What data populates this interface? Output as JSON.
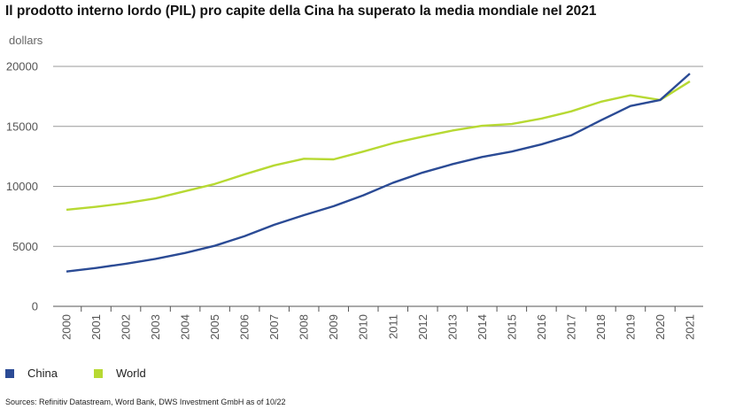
{
  "chart_data": {
    "type": "line",
    "title": "Il prodotto interno lordo (PIL) pro capite della Cina ha superato la media mondiale nel 2021",
    "ylabel": "dollars",
    "xlabel": "",
    "ylim": [
      0,
      20000
    ],
    "yticks": [
      0,
      5000,
      10000,
      15000,
      20000
    ],
    "grid": true,
    "legend_position": "bottom-left",
    "categories": [
      "2000",
      "2001",
      "2002",
      "2003",
      "2004",
      "2005",
      "2006",
      "2007",
      "2008",
      "2009",
      "2010",
      "2011",
      "2012",
      "2013",
      "2014",
      "2015",
      "2016",
      "2017",
      "2018",
      "2019",
      "2020",
      "2021"
    ],
    "series": [
      {
        "name": "China",
        "color": "#2b4b95",
        "values": [
          2900,
          3200,
          3550,
          3950,
          4450,
          5050,
          5850,
          6800,
          7600,
          8350,
          9250,
          10300,
          11150,
          11850,
          12450,
          12900,
          13500,
          14250,
          15500,
          16700,
          17200,
          19400
        ]
      },
      {
        "name": "World",
        "color": "#b7d933",
        "values": [
          8050,
          8300,
          8600,
          9000,
          9600,
          10200,
          11000,
          11750,
          12300,
          12250,
          12900,
          13600,
          14150,
          14650,
          15050,
          15200,
          15650,
          16250,
          17050,
          17600,
          17200,
          18750
        ]
      }
    ],
    "source": "Sources: Refinitiv Datastream, Word Bank, DWS Investment GmbH as of 10/22"
  },
  "colors": {
    "grid": "#999999",
    "axis": "#555555",
    "tick_text": "#555555"
  }
}
